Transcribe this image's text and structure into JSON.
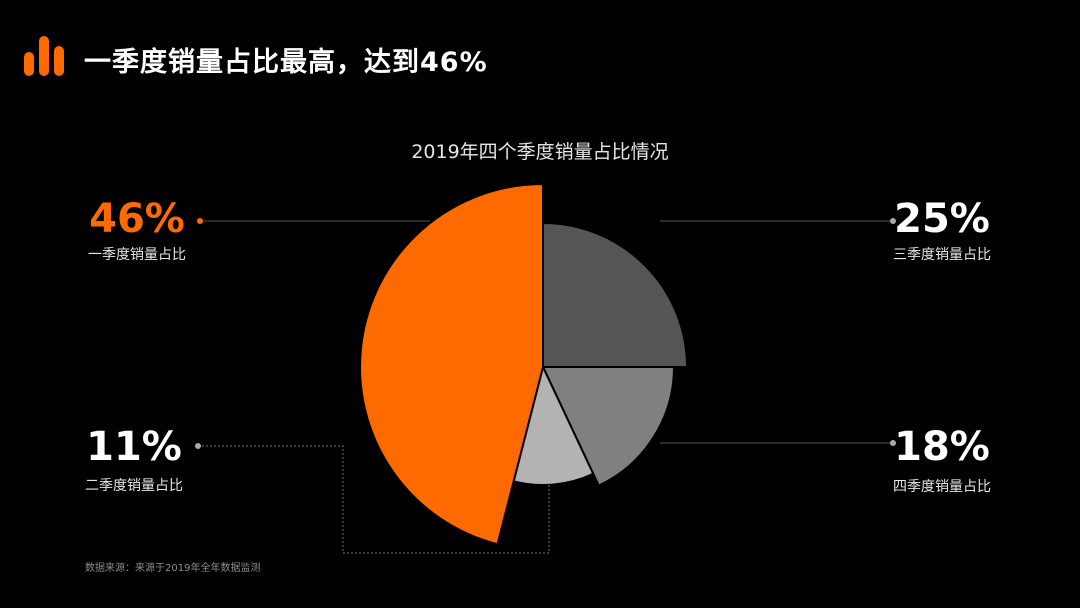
{
  "header": {
    "title": "一季度销量占比最高，达到46%"
  },
  "colors": {
    "background": "#000000",
    "accent": "#ff6a00",
    "text": "#ffffff",
    "muted": "#8c8c8c"
  },
  "chart_data": {
    "type": "pie",
    "title": "2019年四个季度销量占比情况",
    "variant": "rose (radius varies by slice)",
    "slices": [
      {
        "value_label": "46%",
        "value": 46,
        "label": "一季度销量占比",
        "color": "#ff6a00"
      },
      {
        "value_label": "25%",
        "value": 25,
        "label": "三季度销量占比",
        "color": "#555555"
      },
      {
        "value_label": "18%",
        "value": 18,
        "label": "四季度销量占比",
        "color": "#808080"
      },
      {
        "value_label": "11%",
        "value": 11,
        "label": "二季度销量占比",
        "color": "#b3b3b3"
      }
    ]
  },
  "footer": {
    "source": "数据来源：来源于2019年全年数据监测"
  }
}
